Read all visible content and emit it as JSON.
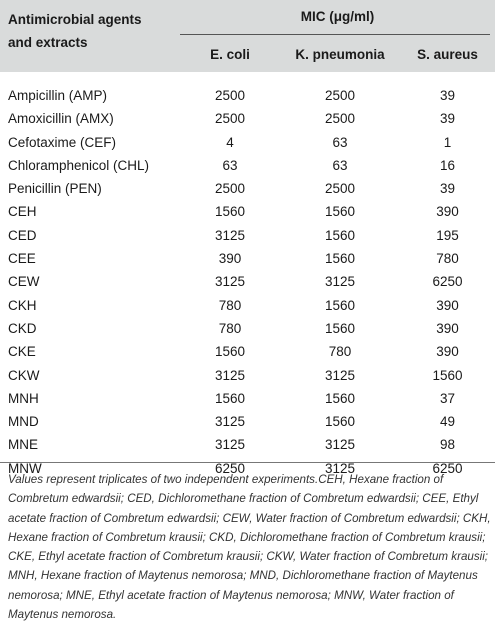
{
  "table": {
    "header": {
      "agents_label_line1": "Antimicrobial agents",
      "agents_label_line2": "and extracts",
      "mic_label": "MIC (μg/ml)",
      "columns": [
        "E. coli",
        "K. pneumonia",
        "S. aureus"
      ]
    },
    "rows": [
      {
        "agent": "Ampicillin (AMP)",
        "ecoli": "2500",
        "kpneumonia": "2500",
        "saureus": "39"
      },
      {
        "agent": "Amoxicillin (AMX)",
        "ecoli": "2500",
        "kpneumonia": "2500",
        "saureus": "39"
      },
      {
        "agent": "Cefotaxime (CEF)",
        "ecoli": "4",
        "kpneumonia": "63",
        "saureus": "1"
      },
      {
        "agent": "Chloramphenicol (CHL)",
        "ecoli": "63",
        "kpneumonia": "63",
        "saureus": "16"
      },
      {
        "agent": "Penicillin (PEN)",
        "ecoli": "2500",
        "kpneumonia": "2500",
        "saureus": "39"
      },
      {
        "agent": "CEH",
        "ecoli": "1560",
        "kpneumonia": "1560",
        "saureus": "390"
      },
      {
        "agent": "CED",
        "ecoli": "3125",
        "kpneumonia": "1560",
        "saureus": "195"
      },
      {
        "agent": "CEE",
        "ecoli": "390",
        "kpneumonia": "1560",
        "saureus": "780"
      },
      {
        "agent": "CEW",
        "ecoli": "3125",
        "kpneumonia": "3125",
        "saureus": "6250"
      },
      {
        "agent": "CKH",
        "ecoli": "780",
        "kpneumonia": "1560",
        "saureus": "390"
      },
      {
        "agent": "CKD",
        "ecoli": "780",
        "kpneumonia": "1560",
        "saureus": "390"
      },
      {
        "agent": "CKE",
        "ecoli": "1560",
        "kpneumonia": "780",
        "saureus": "390"
      },
      {
        "agent": "CKW",
        "ecoli": "3125",
        "kpneumonia": "3125",
        "saureus": "1560"
      },
      {
        "agent": "MNH",
        "ecoli": "1560",
        "kpneumonia": "1560",
        "saureus": "37"
      },
      {
        "agent": "MND",
        "ecoli": "3125",
        "kpneumonia": "1560",
        "saureus": "49"
      },
      {
        "agent": "MNE",
        "ecoli": "3125",
        "kpneumonia": "3125",
        "saureus": "98"
      },
      {
        "agent": "MNW",
        "ecoli": "6250",
        "kpneumonia": "3125",
        "saureus": "6250"
      }
    ]
  },
  "footnote": "Values represent triplicates of two independent experiments.CEH, Hexane fraction of Combretum edwardsii; CED, Dichloromethane fraction of Combretum edwardsii; CEE, Ethyl acetate fraction of Combretum edwardsii; CEW, Water fraction of Combretum edwardsii; CKH, Hexane fraction of Combretum krausii; CKD, Dichloromethane fraction of Combretum krausii; CKE, Ethyl acetate fraction of Combretum krausii; CKW, Water fraction of Combretum krausii; MNH, Hexane fraction of Maytenus nemorosa; MND, Dichloromethane fraction of Maytenus nemorosa; MNE, Ethyl acetate fraction of Maytenus nemorosa; MNW, Water fraction of Maytenus nemorosa.",
  "colors": {
    "header_background": "#d9dbdb",
    "text": "#1a1a1a"
  }
}
